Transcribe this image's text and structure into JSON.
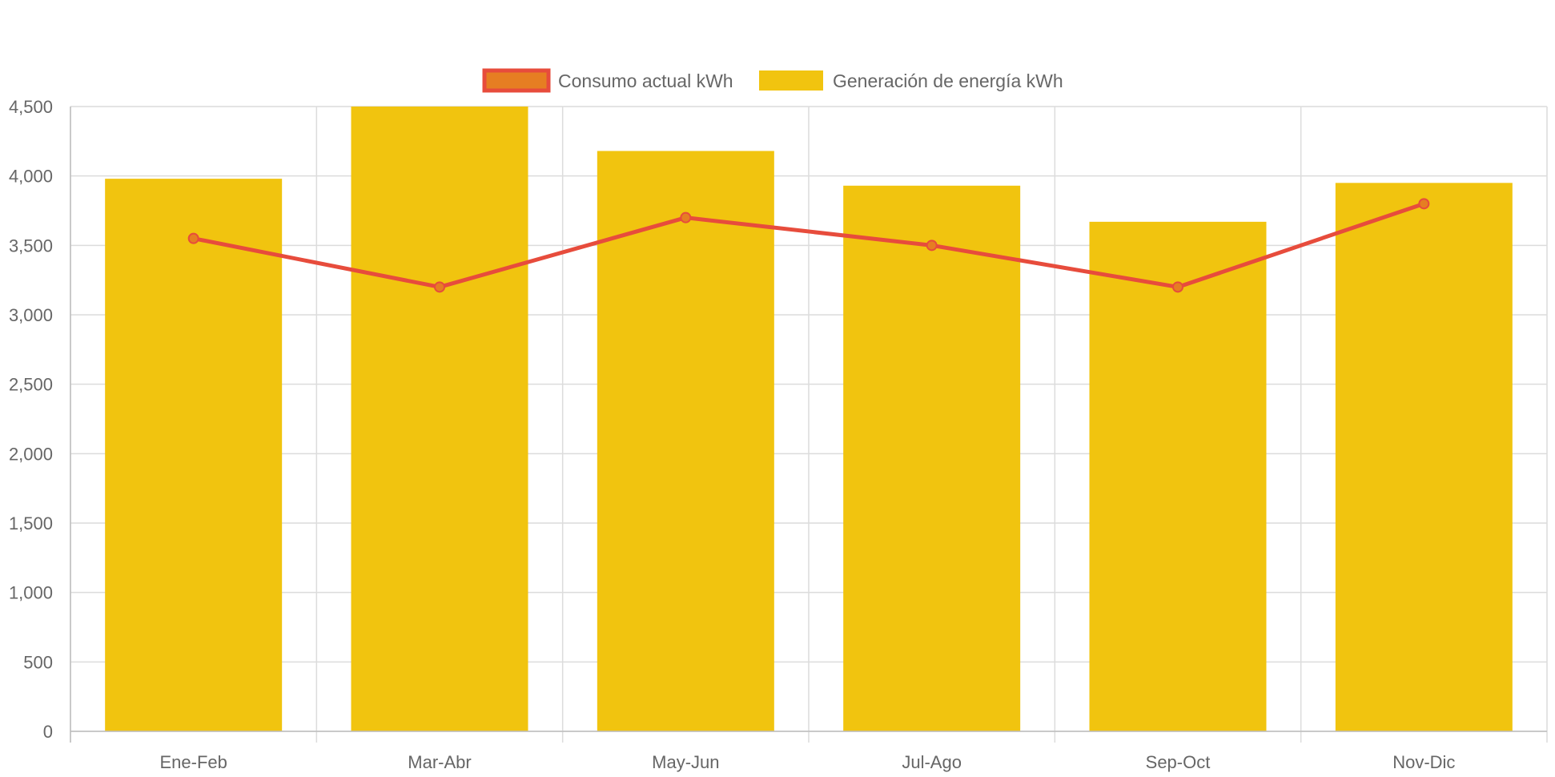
{
  "chart_data": {
    "type": "bar",
    "title": "",
    "xlabel": "",
    "ylabel": "",
    "categories": [
      "Ene-Feb",
      "Mar-Abr",
      "May-Jun",
      "Jul-Ago",
      "Sep-Oct",
      "Nov-Dic"
    ],
    "ylim": [
      0,
      4500
    ],
    "yticks": [
      0,
      500,
      1000,
      1500,
      2000,
      2500,
      3000,
      3500,
      4000,
      4500
    ],
    "ytick_labels": [
      "0",
      "500",
      "1,000",
      "1,500",
      "2,000",
      "2,500",
      "3,000",
      "3,500",
      "4,000",
      "4,500"
    ],
    "grid": true,
    "legend_position": "top-center",
    "series": [
      {
        "name": "Consumo actual kWh",
        "type": "line",
        "color": "#e74c3c",
        "marker_fill": "#e67e22",
        "values": [
          3550,
          3200,
          3700,
          3500,
          3200,
          3800
        ]
      },
      {
        "name": "Generación de energía kWh",
        "type": "bar",
        "color": "#f1c40f",
        "values": [
          3980,
          4500,
          4180,
          3930,
          3670,
          3950
        ]
      }
    ]
  }
}
